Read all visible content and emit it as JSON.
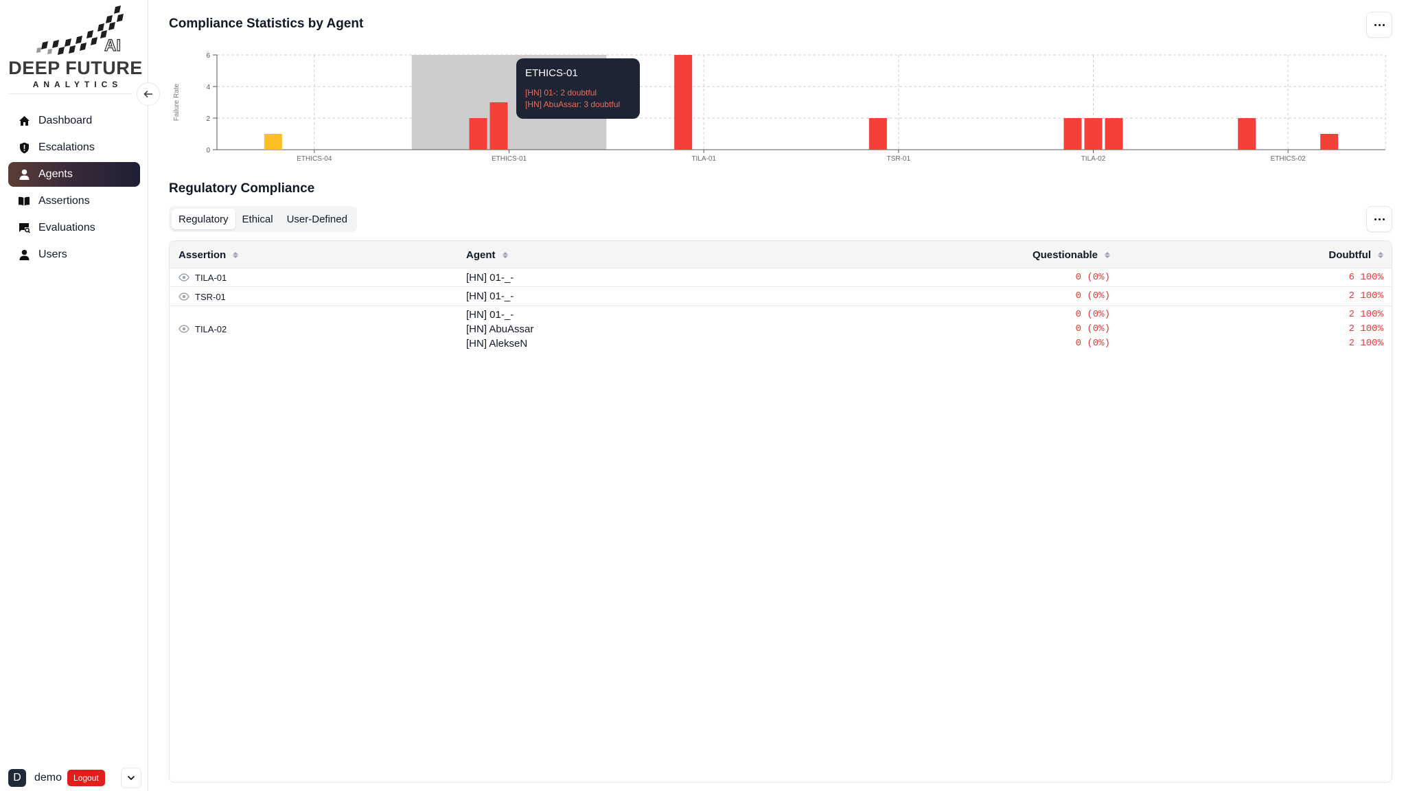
{
  "brand": {
    "name": "DEEP FUTURE",
    "tagline": "ANALYTICS",
    "mark_letter": "AI"
  },
  "sidebar": {
    "items": [
      {
        "label": "Dashboard",
        "icon": "home-icon",
        "active": false
      },
      {
        "label": "Escalations",
        "icon": "shield-icon",
        "active": false
      },
      {
        "label": "Agents",
        "icon": "user-icon",
        "active": true
      },
      {
        "label": "Assertions",
        "icon": "book-icon",
        "active": false
      },
      {
        "label": "Evaluations",
        "icon": "evaluation-icon",
        "active": false
      },
      {
        "label": "Users",
        "icon": "user-icon",
        "active": false
      }
    ],
    "user": {
      "avatar_letter": "D",
      "name": "demo",
      "logout_label": "Logout"
    }
  },
  "stats": {
    "title": "Compliance Statistics by Agent",
    "tooltip": {
      "title": "ETHICS-01",
      "lines": [
        "[HN] 01-: 2 doubtful",
        "[HN] AbuAssar: 3 doubtful"
      ]
    }
  },
  "chart_data": {
    "type": "bar",
    "ylabel": "Failure Rate",
    "ylim": [
      0,
      6
    ],
    "yticks": [
      0,
      2,
      4,
      6
    ],
    "categories": [
      "ETHICS-04",
      "ETHICS-01",
      "TILA-01",
      "TSR-01",
      "TILA-02",
      "ETHICS-02"
    ],
    "highlighted_category": "ETHICS-01",
    "bars": [
      {
        "category": "ETHICS-04",
        "value": 1,
        "color": "#fbbf24"
      },
      {
        "category": "ETHICS-01",
        "value": 2,
        "color": "#f43f3a"
      },
      {
        "category": "ETHICS-01",
        "value": 3,
        "color": "#f43f3a"
      },
      {
        "category": "TILA-01",
        "value": 6,
        "color": "#f43f3a"
      },
      {
        "category": "TSR-01",
        "value": 2,
        "color": "#f43f3a"
      },
      {
        "category": "TILA-02",
        "value": 2,
        "color": "#f43f3a"
      },
      {
        "category": "TILA-02",
        "value": 2,
        "color": "#f43f3a"
      },
      {
        "category": "TILA-02",
        "value": 2,
        "color": "#f43f3a"
      },
      {
        "category": "ETHICS-02",
        "value": 2,
        "color": "#f43f3a"
      },
      {
        "category": "ETHICS-02",
        "value": 1,
        "color": "#f43f3a"
      }
    ]
  },
  "compliance": {
    "title": "Regulatory Compliance",
    "tabs": [
      {
        "label": "Regulatory",
        "active": true
      },
      {
        "label": "Ethical",
        "active": false
      },
      {
        "label": "User-Defined",
        "active": false
      }
    ],
    "columns": {
      "assertion": "Assertion",
      "agent": "Agent",
      "questionable": "Questionable",
      "doubtful": "Doubtful"
    },
    "rows": [
      {
        "assertion": "TILA-01",
        "agents": [
          "[HN] 01-_-"
        ],
        "questionable": [
          "0 (0%)"
        ],
        "doubtful": [
          "6 100%"
        ]
      },
      {
        "assertion": "TSR-01",
        "agents": [
          "[HN] 01-_-"
        ],
        "questionable": [
          "0 (0%)"
        ],
        "doubtful": [
          "2 100%"
        ]
      },
      {
        "assertion": "TILA-02",
        "agents": [
          "[HN] 01-_-",
          "[HN] AbuAssar",
          "[HN] AlekseN"
        ],
        "questionable": [
          "0 (0%)",
          "0 (0%)",
          "0 (0%)"
        ],
        "doubtful": [
          "2 100%",
          "2 100%",
          "2 100%"
        ]
      }
    ]
  }
}
